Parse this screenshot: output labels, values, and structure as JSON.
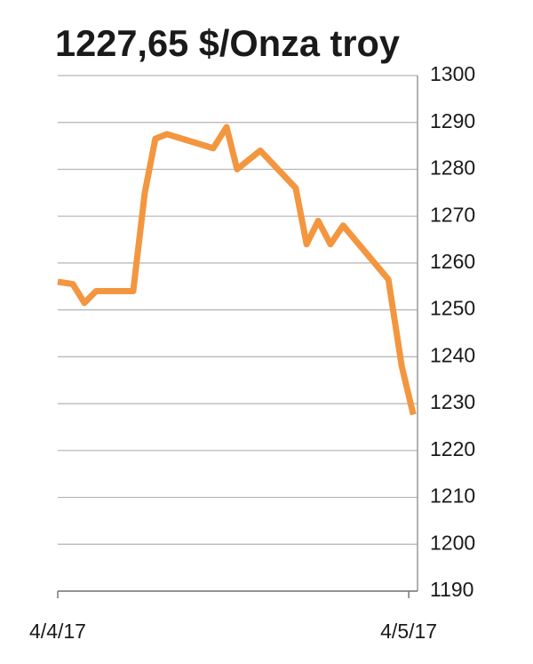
{
  "chart_data": {
    "type": "line",
    "title": "1227,65 $/Onza troy",
    "x": [
      0,
      0.043,
      0.076,
      0.109,
      0.215,
      0.248,
      0.278,
      0.311,
      0.443,
      0.481,
      0.511,
      0.577,
      0.678,
      0.709,
      0.742,
      0.777,
      0.813,
      0.942,
      0.98,
      1.013
    ],
    "series": [
      {
        "color": "#f39640",
        "values": [
          1256,
          1255.5,
          1251.5,
          1254,
          1254,
          1275,
          1286.5,
          1287.5,
          1284.5,
          1289,
          1280,
          1284,
          1276,
          1264,
          1269,
          1264,
          1268,
          1256.5,
          1238,
          1227.65
        ]
      }
    ],
    "xlim": [
      0,
      1.025
    ],
    "xticks": [
      {
        "value": 0,
        "label": "4/4/17"
      },
      {
        "value": 1,
        "label": "4/5/17"
      }
    ],
    "ylim": [
      1190,
      1300
    ],
    "yticks": [
      1190,
      1200,
      1210,
      1220,
      1230,
      1240,
      1250,
      1260,
      1270,
      1280,
      1290,
      1300
    ],
    "grid": true
  }
}
